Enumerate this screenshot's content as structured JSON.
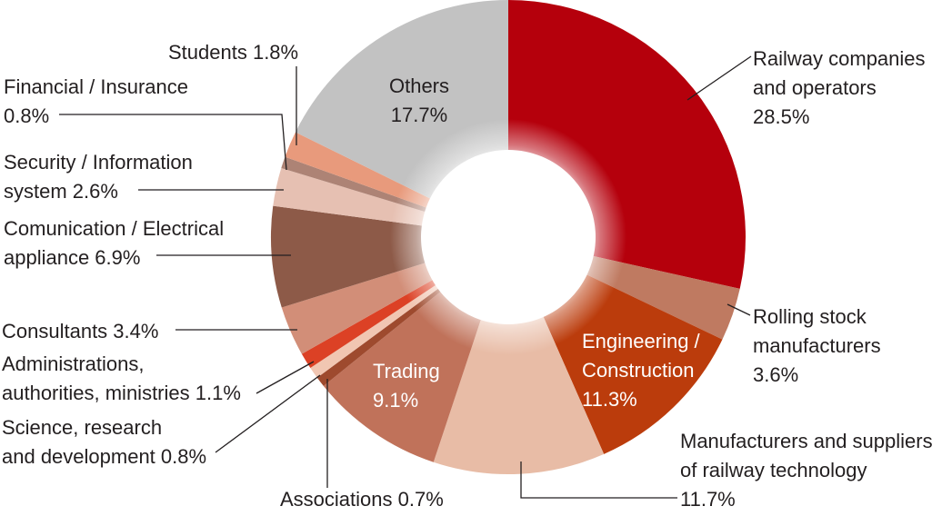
{
  "chart_data": {
    "type": "pie",
    "variant": "donut",
    "unit": "%",
    "slices": [
      {
        "name": "Railway companies and operators",
        "value": 28.5,
        "color": "#b5000c",
        "label_lines": [
          "Railway companies",
          "and operators",
          "28.5%"
        ]
      },
      {
        "name": "Rolling stock manufacturers",
        "value": 3.6,
        "color": "#bf7a61",
        "label_lines": [
          "Rolling stock",
          "manufacturers",
          "3.6%"
        ]
      },
      {
        "name": "Engineering / Construction",
        "value": 11.3,
        "color": "#bb3c0c",
        "label_lines": [
          "Engineering /",
          "Construction",
          "11.3%"
        ]
      },
      {
        "name": "Manufacturers and suppliers of railway technology",
        "value": 11.7,
        "color": "#e8bca6",
        "label_lines": [
          "Manufacturers and suppliers",
          "of railway technology",
          "11.7%"
        ]
      },
      {
        "name": "Trading",
        "value": 9.1,
        "color": "#c0725a",
        "label_lines": [
          "Trading",
          "9.1%"
        ]
      },
      {
        "name": "Associations",
        "value": 0.7,
        "color": "#9e4a2e",
        "label_lines": [
          "Associations  0.7%"
        ]
      },
      {
        "name": "Science, research and development",
        "value": 0.8,
        "color": "#f1c6b2",
        "label_lines": [
          "Science, research",
          "and development  0.8%"
        ]
      },
      {
        "name": "Administrations, authorities, ministries",
        "value": 1.1,
        "color": "#dc4125",
        "label_lines": [
          "Administrations,",
          "authorities, ministries  1.1%"
        ]
      },
      {
        "name": "Consultants",
        "value": 3.4,
        "color": "#d28e78",
        "label_lines": [
          "Consultants  3.4%"
        ]
      },
      {
        "name": "Comunication / Electrical appliance",
        "value": 6.9,
        "color": "#8d5a48",
        "label_lines": [
          "Comunication / Electrical",
          "appliance  6.9%"
        ]
      },
      {
        "name": "Security / Information system",
        "value": 2.6,
        "color": "#e6c0b2",
        "label_lines": [
          "Security / Information",
          "system  2.6%"
        ]
      },
      {
        "name": "Financial / Insurance",
        "value": 0.8,
        "color": "#ad8375",
        "label_lines": [
          "Financial / Insurance",
          "0.8%"
        ]
      },
      {
        "name": "Students",
        "value": 1.8,
        "color": "#e89a7c",
        "label_lines": [
          "Students  1.8%"
        ]
      },
      {
        "name": "Others",
        "value": 17.7,
        "color": "#c2c2c2",
        "label_lines": [
          "Others",
          "17.7%"
        ]
      }
    ]
  }
}
